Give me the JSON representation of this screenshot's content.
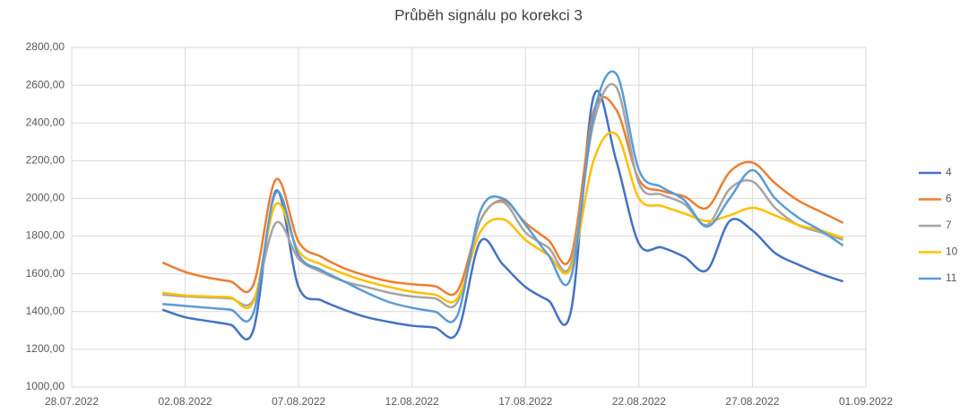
{
  "chart_data": {
    "type": "line",
    "title": "Průběh signálu po korekci 3",
    "x": [
      "01.08.2022",
      "02.08.2022",
      "03.08.2022",
      "04.08.2022",
      "05.08.2022",
      "06.08.2022",
      "07.08.2022",
      "08.08.2022",
      "09.08.2022",
      "10.08.2022",
      "11.08.2022",
      "12.08.2022",
      "13.08.2022",
      "14.08.2022",
      "15.08.2022",
      "16.08.2022",
      "17.08.2022",
      "18.08.2022",
      "19.08.2022",
      "20.08.2022",
      "21.08.2022",
      "22.08.2022",
      "23.08.2022",
      "24.08.2022",
      "25.08.2022",
      "26.08.2022",
      "27.08.2022",
      "28.08.2022",
      "29.08.2022",
      "30.08.2022",
      "31.08.2022"
    ],
    "series": [
      {
        "name": "4",
        "color": "#4472c4",
        "values": [
          1410,
          1370,
          1350,
          1330,
          1300,
          2040,
          1530,
          1460,
          1410,
          1370,
          1345,
          1325,
          1315,
          1290,
          1770,
          1650,
          1530,
          1460,
          1400,
          2540,
          2200,
          1760,
          1740,
          1690,
          1620,
          1880,
          1830,
          1710,
          1650,
          1600,
          1560
        ]
      },
      {
        "name": "6",
        "color": "#ed7d31",
        "values": [
          1660,
          1610,
          1580,
          1560,
          1540,
          2100,
          1770,
          1690,
          1630,
          1590,
          1560,
          1545,
          1535,
          1510,
          1880,
          1990,
          1870,
          1780,
          1690,
          2460,
          2470,
          2100,
          2040,
          2010,
          1950,
          2140,
          2190,
          2080,
          1990,
          1930,
          1870
        ]
      },
      {
        "name": "7",
        "color": "#a5a5a5",
        "values": [
          1490,
          1480,
          1475,
          1470,
          1460,
          1870,
          1680,
          1610,
          1560,
          1530,
          1500,
          1480,
          1470,
          1450,
          1880,
          1980,
          1820,
          1740,
          1650,
          2400,
          2590,
          2080,
          2020,
          1970,
          1860,
          2050,
          2090,
          1950,
          1860,
          1820,
          1780
        ]
      },
      {
        "name": "10",
        "color": "#ffc000",
        "values": [
          1500,
          1485,
          1480,
          1475,
          1450,
          1970,
          1720,
          1650,
          1600,
          1560,
          1530,
          1505,
          1490,
          1470,
          1820,
          1890,
          1780,
          1700,
          1630,
          2200,
          2340,
          2000,
          1960,
          1920,
          1880,
          1910,
          1950,
          1910,
          1860,
          1830,
          1790
        ]
      },
      {
        "name": "11",
        "color": "#5b9bd5",
        "values": [
          1440,
          1430,
          1420,
          1410,
          1390,
          2030,
          1700,
          1620,
          1560,
          1500,
          1450,
          1420,
          1400,
          1380,
          1930,
          2000,
          1860,
          1700,
          1580,
          2440,
          2660,
          2150,
          2060,
          1990,
          1850,
          2000,
          2150,
          2000,
          1900,
          1830,
          1750
        ]
      }
    ],
    "xlim": [
      "28.07.2022",
      "01.09.2022"
    ],
    "xticks": [
      "28.07.2022",
      "02.08.2022",
      "07.08.2022",
      "12.08.2022",
      "17.08.2022",
      "22.08.2022",
      "27.08.2022",
      "01.09.2022"
    ],
    "ylim": [
      1000,
      2800
    ],
    "yticks": [
      {
        "value": 1000,
        "label": "1000,00"
      },
      {
        "value": 1200,
        "label": "1200,00"
      },
      {
        "value": 1400,
        "label": "1400,00"
      },
      {
        "value": 1600,
        "label": "1600,00"
      },
      {
        "value": 1800,
        "label": "1800,00"
      },
      {
        "value": 2000,
        "label": "2000,00"
      },
      {
        "value": 2200,
        "label": "2200,00"
      },
      {
        "value": 2400,
        "label": "2400,00"
      },
      {
        "value": 2600,
        "label": "2600,00"
      },
      {
        "value": 2800,
        "label": "2800,00"
      }
    ],
    "grid": true,
    "legend": "right"
  }
}
